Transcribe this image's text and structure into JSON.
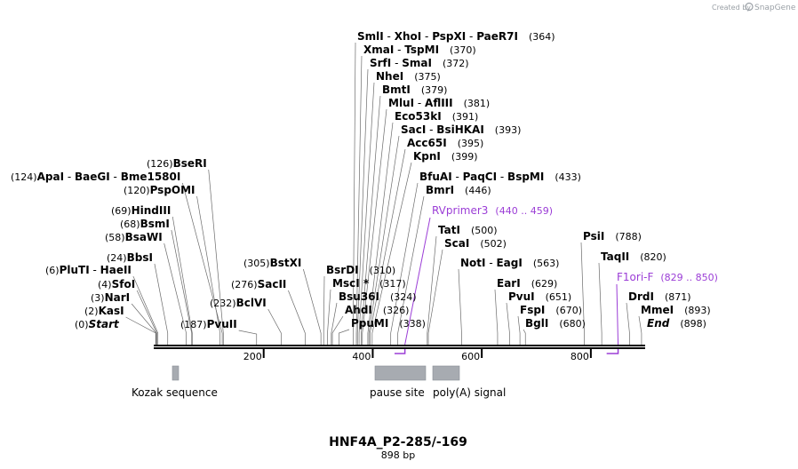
{
  "brand": {
    "created_by": "Created by",
    "name": "SnapGene"
  },
  "title": "HNF4A_P2-285/-169",
  "length": "898 bp",
  "ticks": [
    "200",
    "400",
    "600",
    "800"
  ],
  "sites": [
    {
      "pos": "(364)",
      "names": [
        [
          "SmlI",
          " - "
        ],
        [
          "XhoI",
          " - "
        ],
        [
          "PspXI",
          " - "
        ],
        [
          "PaeR7I",
          ""
        ]
      ]
    },
    {
      "pos": "(370)",
      "names": [
        [
          "XmaI",
          " - "
        ],
        [
          "TspMI",
          ""
        ]
      ]
    },
    {
      "pos": "(372)",
      "names": [
        [
          "SrfI",
          " - "
        ],
        [
          "SmaI",
          ""
        ]
      ]
    },
    {
      "pos": "(375)",
      "names": [
        [
          "NheI",
          ""
        ]
      ]
    },
    {
      "pos": "(379)",
      "names": [
        [
          "BmtI",
          ""
        ]
      ]
    },
    {
      "pos": "(381)",
      "names": [
        [
          "MluI",
          " - "
        ],
        [
          "AflIII",
          ""
        ]
      ]
    },
    {
      "pos": "(391)",
      "names": [
        [
          "Eco53kI",
          ""
        ]
      ]
    },
    {
      "pos": "(393)",
      "names": [
        [
          "SacI",
          " - "
        ],
        [
          "BsiHKAI",
          ""
        ]
      ]
    },
    {
      "pos": "(395)",
      "names": [
        [
          "Acc65I",
          ""
        ]
      ]
    },
    {
      "pos": "(399)",
      "names": [
        [
          "KpnI",
          ""
        ]
      ]
    },
    {
      "pos": "(433)",
      "names": [
        [
          "BfuAI",
          " - "
        ],
        [
          "PaqCI",
          " - "
        ],
        [
          "BspMI",
          ""
        ]
      ]
    },
    {
      "pos": "(446)",
      "names": [
        [
          "BmrI",
          ""
        ]
      ]
    },
    {
      "pos": "(126)",
      "names": [
        [
          "BseRI",
          ""
        ]
      ]
    },
    {
      "pos": "(124)",
      "names": [
        [
          "ApaI",
          " - "
        ],
        [
          "BaeGI",
          " - "
        ],
        [
          "Bme1580I",
          ""
        ]
      ]
    },
    {
      "pos": "(120)",
      "names": [
        [
          "PspOMI",
          ""
        ]
      ]
    },
    {
      "pos": "(69)",
      "names": [
        [
          "HindIII",
          ""
        ]
      ]
    },
    {
      "pos": "(68)",
      "names": [
        [
          "BsmI",
          ""
        ]
      ]
    },
    {
      "pos": "(58)",
      "names": [
        [
          "BsaWI",
          ""
        ]
      ]
    },
    {
      "pos": "(24)",
      "names": [
        [
          "BbsI",
          ""
        ]
      ]
    },
    {
      "pos": "(6)",
      "names": [
        [
          "PluTI",
          " - "
        ],
        [
          "HaeII",
          ""
        ]
      ]
    },
    {
      "pos": "(4)",
      "names": [
        [
          "SfoI",
          ""
        ]
      ]
    },
    {
      "pos": "(3)",
      "names": [
        [
          "NarI",
          ""
        ]
      ]
    },
    {
      "pos": "(2)",
      "names": [
        [
          "KasI",
          ""
        ]
      ]
    },
    {
      "pos": "(0)",
      "names": [
        [
          "Start",
          ""
        ]
      ]
    },
    {
      "pos": "(187)",
      "names": [
        [
          "PvuII",
          ""
        ]
      ]
    },
    {
      "pos": "(232)",
      "names": [
        [
          "BclVI",
          ""
        ]
      ]
    },
    {
      "pos": "(276)",
      "names": [
        [
          "SacII",
          ""
        ]
      ]
    },
    {
      "pos": "(305)",
      "names": [
        [
          "BstXI",
          ""
        ]
      ]
    },
    {
      "pos": "(310)",
      "names": [
        [
          "BsrDI",
          ""
        ]
      ]
    },
    {
      "pos": "(317)",
      "names": [
        [
          "MscI *",
          ""
        ]
      ]
    },
    {
      "pos": "(324)",
      "names": [
        [
          "Bsu36I",
          ""
        ]
      ]
    },
    {
      "pos": "(326)",
      "names": [
        [
          "AhdI",
          ""
        ]
      ]
    },
    {
      "pos": "(338)",
      "names": [
        [
          "PpuMI",
          ""
        ]
      ]
    },
    {
      "pos": "(500)",
      "names": [
        [
          "TatI",
          ""
        ]
      ]
    },
    {
      "pos": "(502)",
      "names": [
        [
          "ScaI",
          ""
        ]
      ]
    },
    {
      "pos": "(563)",
      "names": [
        [
          "NotI",
          " - "
        ],
        [
          "EagI",
          ""
        ]
      ]
    },
    {
      "pos": "(629)",
      "names": [
        [
          "EarI",
          ""
        ]
      ]
    },
    {
      "pos": "(651)",
      "names": [
        [
          "PvuI",
          ""
        ]
      ]
    },
    {
      "pos": "(670)",
      "names": [
        [
          "FspI",
          ""
        ]
      ]
    },
    {
      "pos": "(680)",
      "names": [
        [
          "BglI",
          ""
        ]
      ]
    },
    {
      "pos": "(788)",
      "names": [
        [
          "PsiI",
          ""
        ]
      ]
    },
    {
      "pos": "(820)",
      "names": [
        [
          "TaqII",
          ""
        ]
      ]
    },
    {
      "pos": "(871)",
      "names": [
        [
          "DrdI",
          ""
        ]
      ]
    },
    {
      "pos": "(893)",
      "names": [
        [
          "MmeI",
          ""
        ]
      ]
    },
    {
      "pos": "(898)",
      "names": [
        [
          "End",
          ""
        ]
      ]
    }
  ],
  "primers": [
    {
      "name": "RVprimer3",
      "range": "(440 .. 459)"
    },
    {
      "name": "F1ori-F",
      "range": "(829 .. 850)"
    }
  ],
  "features": [
    {
      "name": "Kozak sequence"
    },
    {
      "name": "pause site"
    },
    {
      "name": "poly(A) signal"
    }
  ],
  "colors": {
    "primer": "#9b3dd6",
    "feature": "#a7abb1",
    "backbone": "#000000"
  }
}
